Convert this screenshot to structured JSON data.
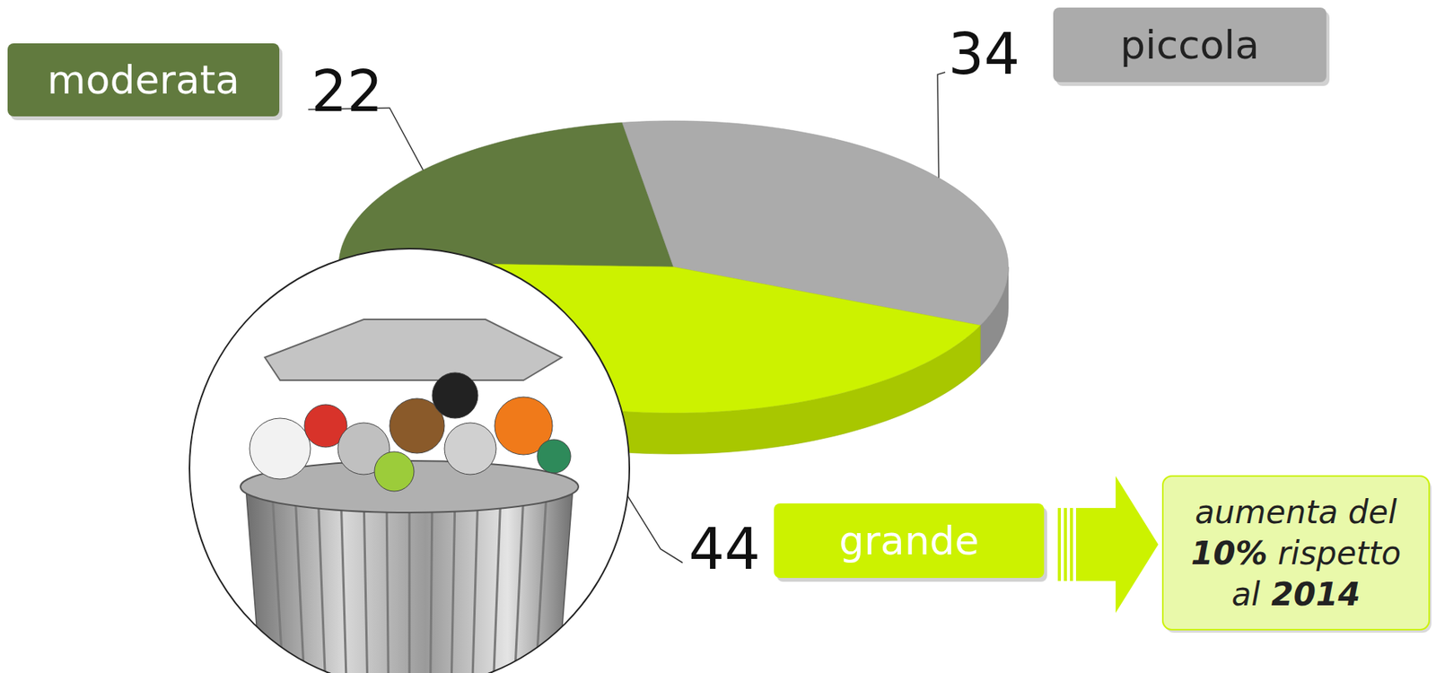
{
  "chart_data": {
    "type": "pie",
    "categories": [
      "moderata",
      "piccola",
      "grande"
    ],
    "values": [
      22,
      34,
      44
    ],
    "colors": [
      "#617a3e",
      "#ababab",
      "#ccf200"
    ],
    "data_labels": true,
    "annotation": "aumenta del 10% rispetto al 2014"
  }
}
